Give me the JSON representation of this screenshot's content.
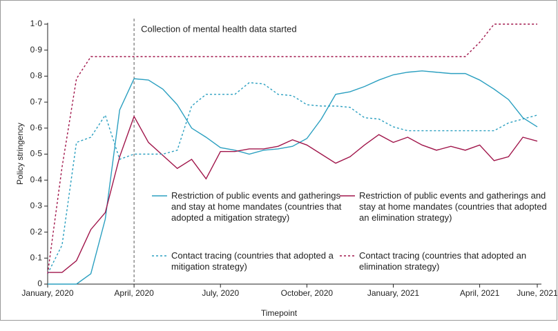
{
  "chart_data": {
    "type": "line",
    "annotation": "Collection of mental health data started",
    "annotation_at": "April, 2020",
    "xlabel": "Timepoint",
    "ylabel": "Policy stringency",
    "categories": [
      "January, 2020",
      null,
      null,
      null,
      null,
      null,
      "April, 2020",
      null,
      null,
      null,
      null,
      null,
      "July, 2020",
      null,
      null,
      null,
      null,
      null,
      "October, 2020",
      null,
      null,
      null,
      null,
      null,
      "January, 2021",
      null,
      null,
      null,
      null,
      null,
      "April, 2021",
      null,
      null,
      null,
      "June, 2021"
    ],
    "series": [
      {
        "name": "Restriction of public events and gatherings and stay at home mandates (countries that adopted a mitigation strategy)",
        "color": "#2a9fc0",
        "dashed": false,
        "values": [
          0,
          0,
          0,
          0.04,
          0.25,
          0.67,
          0.79,
          0.785,
          0.75,
          0.69,
          0.6,
          0.565,
          0.525,
          0.515,
          0.5,
          0.515,
          0.52,
          0.53,
          0.56,
          0.635,
          0.73,
          0.74,
          0.76,
          0.785,
          0.805,
          0.815,
          0.82,
          0.815,
          0.81,
          0.81,
          0.785,
          0.75,
          0.71,
          0.64,
          0.605
        ]
      },
      {
        "name": "Restriction of public events and gatherings and stay at home mandates  (countries that adopted an elimination strategy)",
        "color": "#a0154a",
        "dashed": false,
        "values": [
          0.045,
          0.045,
          0.09,
          0.21,
          0.275,
          0.49,
          0.645,
          0.545,
          0.495,
          0.445,
          0.48,
          0.405,
          0.51,
          0.51,
          0.52,
          0.52,
          0.53,
          0.555,
          0.535,
          0.5,
          0.465,
          0.49,
          0.535,
          0.575,
          0.545,
          0.565,
          0.535,
          0.515,
          0.53,
          0.515,
          0.535,
          0.475,
          0.49,
          0.565,
          0.55
        ]
      },
      {
        "name": "Contact tracing (countries that adopted a mitigation strategy)",
        "color": "#2a9fc0",
        "dashed": true,
        "values": [
          0.04,
          0.15,
          0.545,
          0.565,
          0.65,
          0.48,
          0.5,
          0.5,
          0.5,
          0.515,
          0.685,
          0.73,
          0.73,
          0.73,
          0.775,
          0.77,
          0.73,
          0.725,
          0.69,
          0.685,
          0.685,
          0.68,
          0.64,
          0.635,
          0.605,
          0.59,
          0.59,
          0.59,
          0.59,
          0.59,
          0.59,
          0.59,
          0.62,
          0.635,
          0.65
        ]
      },
      {
        "name": "Contact tracing (countries that adopted an elimination strategy)",
        "color": "#a0154a",
        "dashed": true,
        "values": [
          0.04,
          0.45,
          0.79,
          0.875,
          0.875,
          0.875,
          0.875,
          0.875,
          0.875,
          0.875,
          0.875,
          0.875,
          0.875,
          0.875,
          0.875,
          0.875,
          0.875,
          0.875,
          0.875,
          0.875,
          0.875,
          0.875,
          0.875,
          0.875,
          0.875,
          0.875,
          0.875,
          0.875,
          0.875,
          0.875,
          0.93,
          1.0,
          1.0,
          1.0,
          1.0
        ]
      }
    ],
    "ylim": [
      0,
      1.0
    ],
    "yticks": [
      0,
      {
        "value": 0.1,
        "label": "0·1"
      },
      {
        "value": 0.2,
        "label": "0·2"
      },
      {
        "value": 0.3,
        "label": "0·3"
      },
      {
        "value": 0.4,
        "label": "0·4"
      },
      {
        "value": 0.5,
        "label": "0·5"
      },
      {
        "value": 0.6,
        "label": "0·6"
      },
      {
        "value": 0.7,
        "label": "0·7"
      },
      {
        "value": 0.8,
        "label": "0·8"
      },
      {
        "value": 0.9,
        "label": "0·9"
      },
      {
        "value": 1.0,
        "label": "1·0"
      }
    ],
    "grid": false
  }
}
